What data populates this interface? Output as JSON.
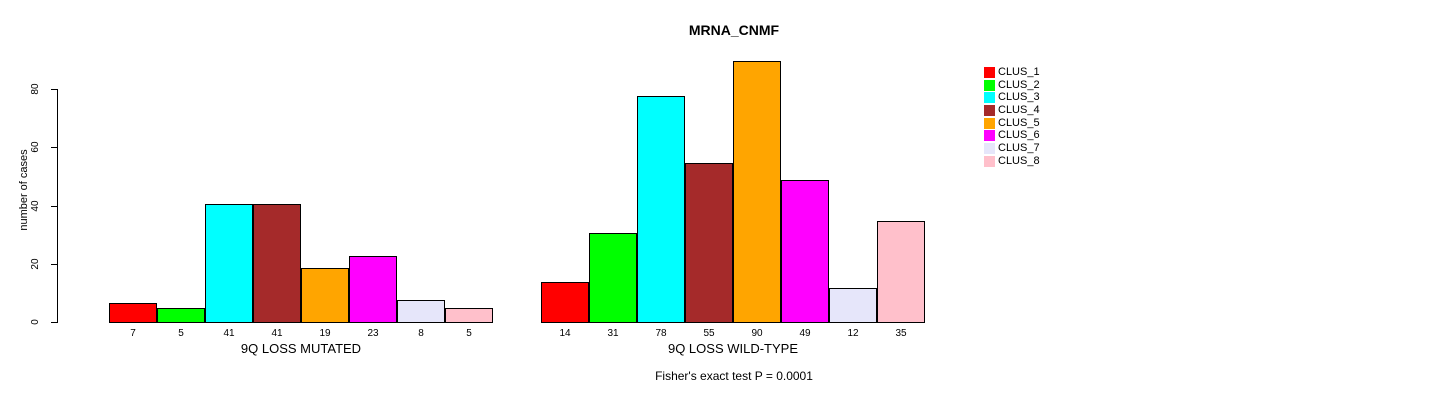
{
  "chart_data": {
    "type": "bar",
    "title": "MRNA_CNMF",
    "ylabel": "number of cases",
    "yticks": [
      0,
      20,
      40,
      60,
      80
    ],
    "ylim": [
      0,
      90
    ],
    "grid": false,
    "legend_position": "right",
    "clusters": [
      "CLUS_1",
      "CLUS_2",
      "CLUS_3",
      "CLUS_4",
      "CLUS_5",
      "CLUS_6",
      "CLUS_7",
      "CLUS_8"
    ],
    "colors": [
      "#FF0000",
      "#00FF00",
      "#00FFFF",
      "#A52A2A",
      "#FFA500",
      "#FF00FF",
      "#E6E6FA",
      "#FFC0CB"
    ],
    "groups": [
      {
        "label": "9Q LOSS MUTATED",
        "values": [
          7,
          5,
          41,
          41,
          19,
          23,
          8,
          5
        ]
      },
      {
        "label": "9Q LOSS WILD-TYPE",
        "values": [
          14,
          31,
          78,
          55,
          90,
          49,
          12,
          35
        ]
      }
    ],
    "annotation": "Fisher's exact test P = 0.0001",
    "colors_meaning": "bar fill colors indexed by cluster",
    "axis_color": "#000000",
    "background_color": "#FFFFFF"
  }
}
